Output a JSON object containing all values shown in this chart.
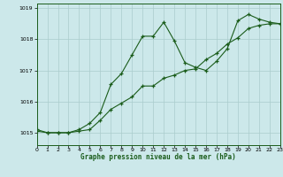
{
  "title": "Graphe pression niveau de la mer (hPa)",
  "xlabel_ticks": [
    0,
    1,
    2,
    3,
    4,
    5,
    6,
    7,
    8,
    9,
    10,
    11,
    12,
    13,
    14,
    15,
    16,
    17,
    18,
    19,
    20,
    21,
    22,
    23
  ],
  "ylim": [
    1014.6,
    1019.15
  ],
  "yticks": [
    1015,
    1016,
    1017,
    1018,
    1019
  ],
  "xlim": [
    0,
    23
  ],
  "bg_color": "#cce8ea",
  "grid_color": "#aacccc",
  "line_color": "#1a5c1a",
  "line1_x": [
    0,
    1,
    2,
    3,
    4,
    5,
    6,
    7,
    8,
    9,
    10,
    11,
    12,
    13,
    14,
    15,
    16,
    17,
    18,
    19,
    20,
    21,
    22,
    23
  ],
  "line1_y": [
    1015.1,
    1015.0,
    1015.0,
    1015.0,
    1015.1,
    1015.3,
    1015.65,
    1016.55,
    1016.9,
    1017.5,
    1018.1,
    1018.1,
    1018.55,
    1017.95,
    1017.25,
    1017.1,
    1017.0,
    1017.3,
    1017.7,
    1018.6,
    1018.8,
    1018.65,
    1018.55,
    1018.5
  ],
  "line2_x": [
    0,
    1,
    2,
    3,
    4,
    5,
    6,
    7,
    8,
    9,
    10,
    11,
    12,
    13,
    14,
    15,
    16,
    17,
    18,
    19,
    20,
    21,
    22,
    23
  ],
  "line2_y": [
    1015.05,
    1015.0,
    1015.0,
    1015.0,
    1015.05,
    1015.1,
    1015.4,
    1015.75,
    1015.95,
    1016.15,
    1016.5,
    1016.5,
    1016.75,
    1016.85,
    1017.0,
    1017.05,
    1017.35,
    1017.55,
    1017.85,
    1018.05,
    1018.35,
    1018.45,
    1018.5,
    1018.5
  ],
  "marker": "+"
}
